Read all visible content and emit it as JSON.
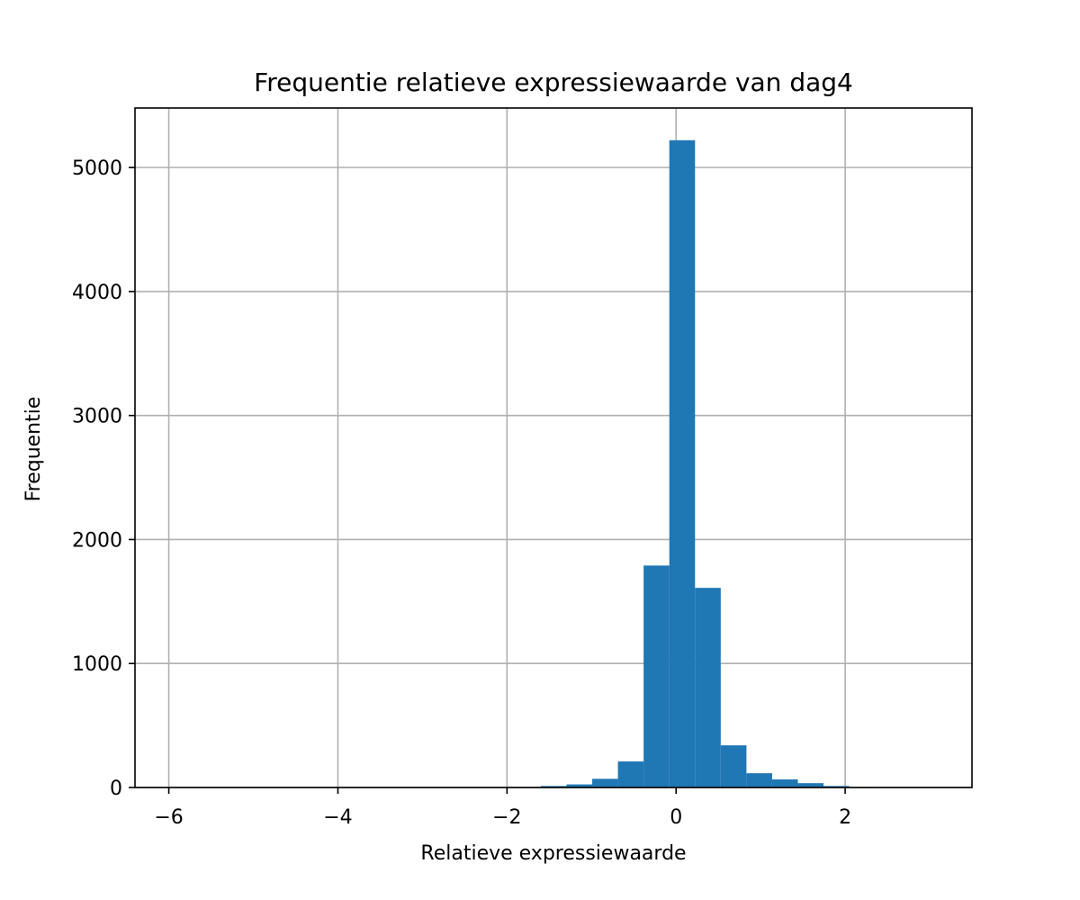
{
  "chart_data": {
    "type": "bar",
    "title": "Frequentie relatieve expressiewaarde van dag4",
    "xlabel": "Relatieve expressiewaarde",
    "ylabel": "Frequentie",
    "xlim": [
      -6.4,
      3.5
    ],
    "ylim": [
      0,
      5480
    ],
    "grid": true,
    "bar_color": "#1f77b4",
    "bin_width": 0.304,
    "bins": [
      {
        "x0": -6.16,
        "x1": -5.856,
        "value": 1
      },
      {
        "x0": -5.856,
        "x1": -5.552,
        "value": 0
      },
      {
        "x0": -5.552,
        "x1": -5.248,
        "value": 0
      },
      {
        "x0": -5.248,
        "x1": -4.944,
        "value": 0
      },
      {
        "x0": -4.944,
        "x1": -4.64,
        "value": 0
      },
      {
        "x0": -4.64,
        "x1": -4.336,
        "value": 0
      },
      {
        "x0": -4.336,
        "x1": -4.032,
        "value": 0
      },
      {
        "x0": -4.032,
        "x1": -3.728,
        "value": 0
      },
      {
        "x0": -3.728,
        "x1": -3.424,
        "value": 0
      },
      {
        "x0": -3.424,
        "x1": -3.12,
        "value": 0
      },
      {
        "x0": -3.12,
        "x1": -2.816,
        "value": 0
      },
      {
        "x0": -2.816,
        "x1": -2.512,
        "value": 0
      },
      {
        "x0": -2.512,
        "x1": -2.208,
        "value": 0
      },
      {
        "x0": -2.208,
        "x1": -1.904,
        "value": 1
      },
      {
        "x0": -1.904,
        "x1": -1.6,
        "value": 4
      },
      {
        "x0": -1.6,
        "x1": -1.296,
        "value": 12
      },
      {
        "x0": -1.296,
        "x1": -0.992,
        "value": 25
      },
      {
        "x0": -0.992,
        "x1": -0.688,
        "value": 70
      },
      {
        "x0": -0.688,
        "x1": -0.384,
        "value": 210
      },
      {
        "x0": -0.384,
        "x1": -0.08,
        "value": 1790
      },
      {
        "x0": -0.08,
        "x1": 0.224,
        "value": 5220
      },
      {
        "x0": 0.224,
        "x1": 0.528,
        "value": 1610
      },
      {
        "x0": 0.528,
        "x1": 0.832,
        "value": 340
      },
      {
        "x0": 0.832,
        "x1": 1.136,
        "value": 115
      },
      {
        "x0": 1.136,
        "x1": 1.44,
        "value": 65
      },
      {
        "x0": 1.44,
        "x1": 1.744,
        "value": 35
      },
      {
        "x0": 1.744,
        "x1": 2.048,
        "value": 12
      },
      {
        "x0": 2.048,
        "x1": 2.352,
        "value": 4
      },
      {
        "x0": 2.352,
        "x1": 2.656,
        "value": 2
      },
      {
        "x0": 2.656,
        "x1": 2.96,
        "value": 1
      }
    ],
    "xticks": [
      -6,
      -4,
      -2,
      0,
      2
    ],
    "xtick_labels": [
      "−6",
      "−4",
      "−2",
      "0",
      "2"
    ],
    "yticks": [
      0,
      1000,
      2000,
      3000,
      4000,
      5000
    ],
    "ytick_labels": [
      "0",
      "1000",
      "2000",
      "3000",
      "4000",
      "5000"
    ]
  }
}
